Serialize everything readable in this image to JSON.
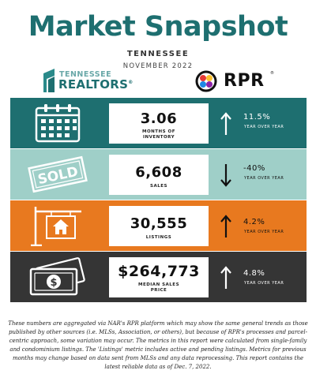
{
  "header": {
    "title": "Market Snapshot",
    "state": "TENNESSEE",
    "date": "NOVEMBER 2022"
  },
  "logos": {
    "tn_small": "TENNESSEE",
    "tn_big": "REALTORS",
    "tn_trademark": "®",
    "rpr_text": "RPR",
    "rpr_trademark": "®"
  },
  "metrics": [
    {
      "value": "3.06",
      "label_lines": [
        "MONTHS OF",
        "INVENTORY"
      ],
      "change": "11.5%",
      "change_label": "YEAR OVER YEAR",
      "direction": "up",
      "icon": "calendar-icon",
      "color": "#1e6f70"
    },
    {
      "value": "6,608",
      "label_lines": [
        "SALES"
      ],
      "change": "-40%",
      "change_label": "YEAR OVER YEAR",
      "direction": "down",
      "icon": "sold-stamp-icon",
      "stamp_text": "SOLD",
      "color": "#9fcfc8"
    },
    {
      "value": "30,555",
      "label_lines": [
        "LISTINGS"
      ],
      "change": "4.2%",
      "change_label": "YEAR OVER YEAR",
      "direction": "up",
      "icon": "house-sign-icon",
      "color": "#e8791f"
    },
    {
      "value": "$264,773",
      "label_lines": [
        "MEDIAN SALES",
        "PRICE"
      ],
      "change": "4.8%",
      "change_label": "YEAR OVER YEAR",
      "direction": "up",
      "icon": "money-icon",
      "color": "#353535"
    }
  ],
  "footer": {
    "text": "These numbers are aggregated via NAR's RPR platform which may show the same general trends as those published by other sources (i.e. MLSs, Association, or others), but because of RPR's processes and parcel-centric approach, some variation may occur. The metrics in this report were calculated from single-family and condominium listings. The 'Listings' metric includes active and pending listings. Metrics for previous months may change based on data sent from MLSs and any data reprocessing. This report contains the latest reliable data as of Dec. 7, 2022."
  }
}
